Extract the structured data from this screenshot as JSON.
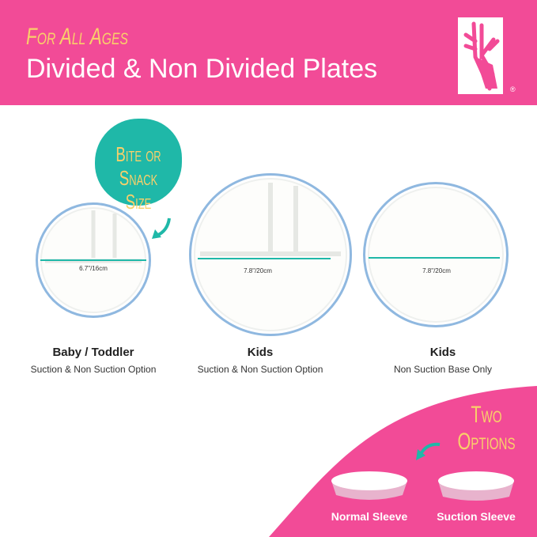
{
  "header": {
    "eyebrow": "For All Ages",
    "title": "Divided & Non Divided Plates",
    "logo": "deer-antler-logo",
    "registered": "®"
  },
  "callout": {
    "text_line1": "Bite or",
    "text_line2": "Snack Size"
  },
  "plates": [
    {
      "diameter": "6.7\"/16cm",
      "name": "Baby / Toddler",
      "option": "Suction & Non Suction Option",
      "divided": true
    },
    {
      "diameter": "7.8\"/20cm",
      "name": "Kids",
      "option": "Suction & Non Suction Option",
      "divided": true
    },
    {
      "diameter": "7.8\"/20cm",
      "name": "Kids",
      "option": "Non Suction Base Only",
      "divided": false
    }
  ],
  "options": {
    "title_line1": "Two",
    "title_line2": "Options",
    "sleeves": [
      {
        "label": "Normal Sleeve"
      },
      {
        "label": "Suction Sleeve"
      }
    ]
  },
  "colors": {
    "brand_pink": "#f24b97",
    "accent_yellow": "#f9d06a",
    "teal": "#1fb8a8"
  }
}
